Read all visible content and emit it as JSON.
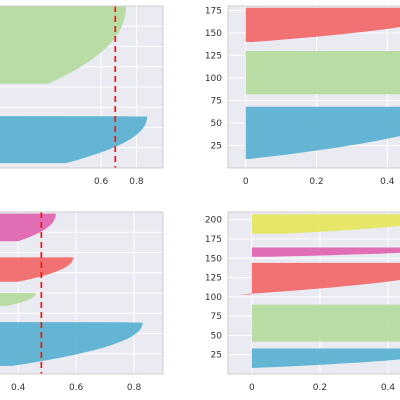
{
  "colors": {
    "plot_bg": "#eaeaf2",
    "grid": "#ffffff",
    "frame": "#cfcfcf",
    "green": "#b6dba0",
    "blue": "#5cb2d1",
    "red": "#f26a6a",
    "pink": "#e066b0",
    "yellow": "#e6e660",
    "threshold": "#e3231a"
  },
  "chart_data": [
    {
      "type": "area",
      "panel": "top-left",
      "xlim": [
        0.0,
        0.95
      ],
      "x_ticks": [
        0.6,
        0.8
      ],
      "y_ticks": [],
      "threshold_x": 0.68,
      "series": [
        {
          "color": "green",
          "max": 0.74,
          "min": 0.3,
          "y_range": [
            0.52,
            1.0
          ]
        },
        {
          "color": "blue",
          "max": 0.86,
          "min": 0.4,
          "y_range": [
            0.03,
            0.32
          ]
        }
      ]
    },
    {
      "type": "area",
      "panel": "top-right",
      "xlim": [
        -0.05,
        0.45
      ],
      "x_ticks": [
        0.0,
        0.2,
        0.4
      ],
      "y_ticks": [
        25,
        50,
        75,
        100,
        125,
        150,
        175
      ],
      "ylim": [
        0,
        180
      ],
      "series": [
        {
          "color": "red",
          "y_range": [
            140,
            178
          ],
          "max": 0.6,
          "min": 0.02
        },
        {
          "color": "green",
          "y_range": [
            82,
            130
          ],
          "max": 0.6,
          "min": 0.6
        },
        {
          "color": "blue",
          "y_range": [
            10,
            68
          ],
          "max": 0.6,
          "min": 0.01
        }
      ]
    },
    {
      "type": "area",
      "panel": "bottom-left",
      "xlim": [
        0.32,
        0.9
      ],
      "x_ticks": [
        0.4,
        0.6,
        0.8
      ],
      "y_ticks": [],
      "threshold_x": 0.48,
      "series": [
        {
          "color": "pink",
          "max": 0.53,
          "min": 0.4,
          "y_range": [
            0.82,
            0.99
          ]
        },
        {
          "color": "red",
          "max": 0.59,
          "min": 0.4,
          "y_range": [
            0.57,
            0.72
          ]
        },
        {
          "color": "green",
          "max": 0.46,
          "min": 0.36,
          "y_range": [
            0.42,
            0.5
          ]
        },
        {
          "color": "blue",
          "max": 0.83,
          "min": 0.38,
          "y_range": [
            0.05,
            0.32
          ]
        }
      ]
    },
    {
      "type": "area",
      "panel": "bottom-right",
      "xlim": [
        -0.07,
        0.45
      ],
      "x_ticks": [
        0.0,
        0.2,
        0.4
      ],
      "y_ticks": [
        25,
        50,
        75,
        100,
        125,
        150,
        175,
        200
      ],
      "ylim": [
        0,
        210
      ],
      "series": [
        {
          "color": "yellow",
          "y_range": [
            182,
            207
          ],
          "max": 0.6,
          "min": 0.1
        },
        {
          "color": "pink",
          "y_range": [
            152,
            164
          ],
          "max": 0.6,
          "min": 0.05
        },
        {
          "color": "red",
          "y_range": [
            103,
            144
          ],
          "max": 0.6,
          "min": -0.04
        },
        {
          "color": "green",
          "y_range": [
            42,
            90
          ],
          "max": 0.6,
          "min": 0.6
        },
        {
          "color": "blue",
          "y_range": [
            8,
            33
          ],
          "max": 0.6,
          "min": 0.02
        }
      ]
    }
  ]
}
